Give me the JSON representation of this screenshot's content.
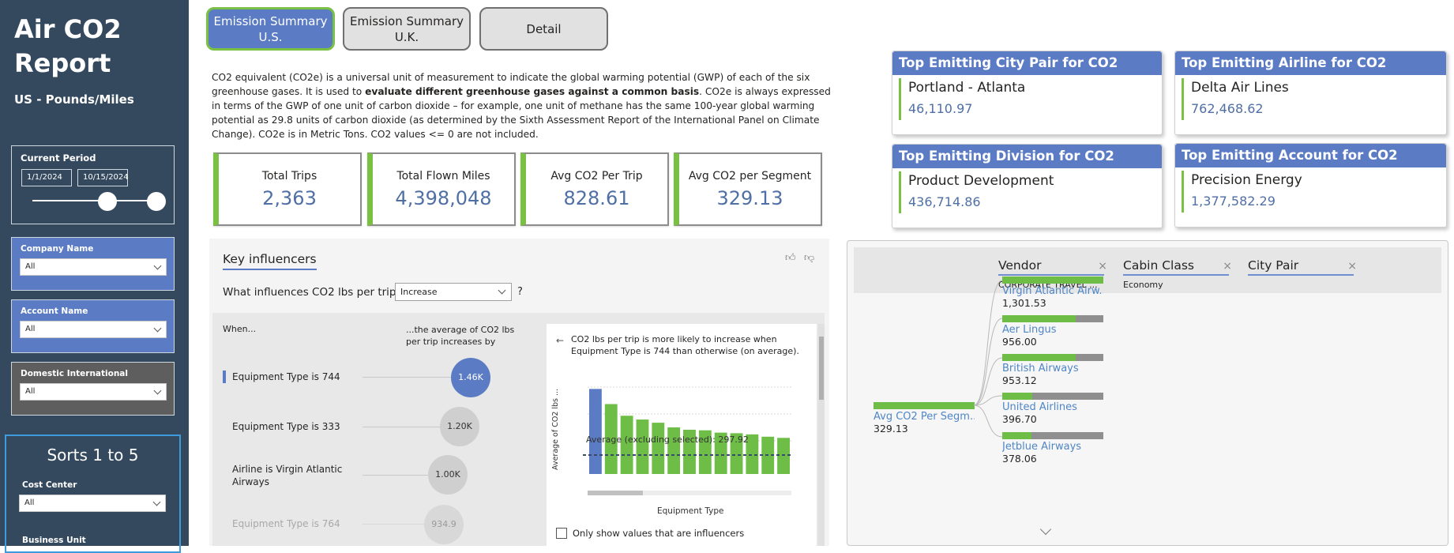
{
  "sidebar": {
    "title_line1": "Air CO2",
    "title_line2": "Report",
    "subtitle": "US - Pounds/Miles",
    "current_period": {
      "label": "Current Period",
      "start": "1/1/2024",
      "end": "10/15/2024"
    },
    "company": {
      "label": "Company Name",
      "value": "All"
    },
    "account": {
      "label": "Account Name",
      "value": "All"
    },
    "domestic": {
      "label": "Domestic International",
      "value": "All"
    },
    "sorts": {
      "title": "Sorts 1 to 5",
      "cost_center_label": "Cost Center",
      "cost_center_value": "All",
      "business_unit_label": "Business Unit"
    }
  },
  "tabs": [
    {
      "line1": "Emission Summary",
      "line2": "U.S.",
      "active": true
    },
    {
      "line1": "Emission Summary",
      "line2": "U.K.",
      "active": false
    },
    {
      "line1": "Detail",
      "line2": "",
      "active": false
    }
  ],
  "description": {
    "part1": "CO2 equivalent (CO2e) is a universal unit of measurement to indicate the global warming potential (GWP) of each of the six greenhouse gases. It is used to ",
    "bold": "evaluate different greenhouse gases against a common basis",
    "part2": ". CO2e is always expressed in terms of the GWP of one unit of carbon dioxide – for example, one unit of methane has the same 100-year global warming potential as 29.8 units of carbon dioxide (as determined by the Sixth Assessment Report of the International Panel on Climate Change).  CO2e is in Metric Tons. CO2 values <= 0 are not included."
  },
  "kpis": [
    {
      "label": "Total Trips",
      "value": "2,363"
    },
    {
      "label": "Total Flown Miles",
      "value": "4,398,048"
    },
    {
      "label": "Avg CO2 Per Trip",
      "value": "828.61"
    },
    {
      "label": "Avg CO2 per Segment",
      "value": "329.13"
    }
  ],
  "top_cards": [
    {
      "title": "Top Emitting City Pair for CO2",
      "name": "Portland - Atlanta",
      "value": "46,110.97"
    },
    {
      "title": "Top Emitting Airline for CO2",
      "name": "Delta Air Lines",
      "value": "762,468.62"
    },
    {
      "title": "Top Emitting Division for CO2",
      "name": "Product Development",
      "value": "436,714.86"
    },
    {
      "title": "Top Emitting Account for CO2",
      "name": "Precision Energy",
      "value": "1,377,582.29"
    }
  ],
  "key_influencers": {
    "tab_label": "Key influencers",
    "question": "What influences CO2 lbs per trip to",
    "selector": "Increase",
    "question_mark": "?",
    "when_label": "When...",
    "avg_label_line1": "...the average of CO2 lbs",
    "avg_label_line2": "per trip increases by",
    "rows": [
      {
        "label": "Equipment Type is 744",
        "value": "1.46K",
        "selected": true
      },
      {
        "label": "Equipment Type is 333",
        "value": "1.20K",
        "selected": false
      },
      {
        "label": "Airline is Virgin Atlantic Airways",
        "value": "1.00K",
        "selected": false
      },
      {
        "label": "Equipment Type is 764",
        "value": "934.9",
        "selected": false
      }
    ],
    "detail": {
      "text": "CO2 lbs per trip is more likely to increase when Equipment Type is 744 than otherwise (on average).",
      "avg_text": "Average (excluding selected): 297.92",
      "y_label": "Average of CO2 lbs ...",
      "x_label": "Equipment Type",
      "checkbox_label": "Only show values that are influencers"
    }
  },
  "chart_data": {
    "type": "bar",
    "values": [
      1460,
      1200,
      1000,
      934.9,
      880,
      800,
      760,
      750,
      710,
      700,
      680,
      640,
      620
    ],
    "average_line": 297.92,
    "xlabel": "Equipment Type",
    "ylabel": "Average of CO2 lbs ..."
  },
  "decomp": {
    "levels": [
      {
        "title": "Vendor",
        "selected": "CORPORATE TRAVEL ..."
      },
      {
        "title": "Cabin Class",
        "selected": "Economy"
      },
      {
        "title": "City Pair",
        "selected": ""
      }
    ],
    "root": {
      "label": "Avg CO2 Per Segm...",
      "value": "329.13"
    },
    "nodes": [
      {
        "label": "Virgin Atlantic Airw...",
        "value": "1,301.53",
        "fill": 1.0
      },
      {
        "label": "Aer Lingus",
        "value": "956.00",
        "fill": 0.73
      },
      {
        "label": "British Airways",
        "value": "953.12",
        "fill": 0.73
      },
      {
        "label": "United Airlines",
        "value": "396.70",
        "fill": 0.3
      },
      {
        "label": "Jetblue Airways",
        "value": "378.06",
        "fill": 0.29
      }
    ]
  },
  "colors": {
    "accent_green": "#7ac143",
    "tab_blue": "#5b7cc4",
    "sidebar": "#34495e",
    "value_blue": "#4f6fa5",
    "bubble_selected": "#5b7cc4"
  }
}
